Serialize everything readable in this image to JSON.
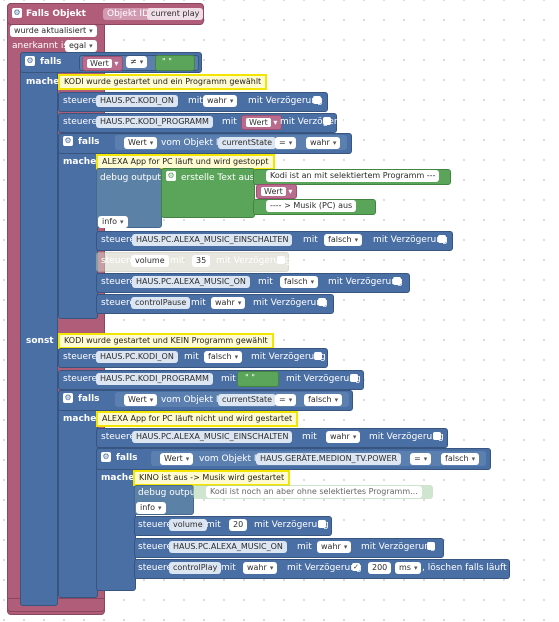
{
  "trigger": {
    "title": "Falls Objekt",
    "object_id_label": "Objekt ID",
    "object_id_value": "current play",
    "condition": "wurde aktualisiert",
    "ack_label": "anerkannt ist",
    "ack_value": "egal"
  },
  "labels": {
    "falls": "falls",
    "mache": "mache",
    "sonst": "sonst",
    "steuere": "steuere",
    "mit": "mit",
    "mit_verz": "mit Verzögerung",
    "wert": "Wert",
    "vom_objekt": "vom Objekt ID",
    "debug": "debug output",
    "info": "info",
    "erstelle": "erstelle Text aus",
    "ms": "ms",
    "loeschen": ", löschen falls läuft"
  },
  "top_if": {
    "compare_op": "≠",
    "empty_string": "\" \""
  },
  "comments": {
    "c1": "KODI wurde gestartet und ein Programm gewählt",
    "c2": "ALEXA App for PC läuft und wird gestoppt",
    "c3": "KODI wurde gestartet und KEIN Programm gewählt",
    "c4": "ALEXA App for PC läuft nicht und wird gestartet",
    "c5": "KINO ist aus -> Musik wird gestartet"
  },
  "objects": {
    "kodi_on": "HAUS.PC.KODI_ON",
    "kodi_prog": "HAUS.PC.KODI_PROGRAMM",
    "current_state": "currentState",
    "alexa_ein": "HAUS.PC.ALEXA_MUSIC_EINSCHALTEN",
    "volume": "volume",
    "alexa_on": "HAUS.PC.ALEXA_MUSIC_ON",
    "control_pause": "controlPause",
    "medion": "HAUS.GERÄTE.MEDION_TV.POWER",
    "control_play": "controlPlay"
  },
  "values": {
    "wahr": "wahr",
    "falsch": "falsch",
    "eq": "=",
    "v35": "35",
    "v20": "20",
    "v200": "200"
  },
  "texts": {
    "t1": "Kodi ist an mit selektiertem Programm ---",
    "t2": "---- > Musik (PC) aus",
    "t3": "Kodi ist noch an aber ohne selektiertes Programm..."
  }
}
